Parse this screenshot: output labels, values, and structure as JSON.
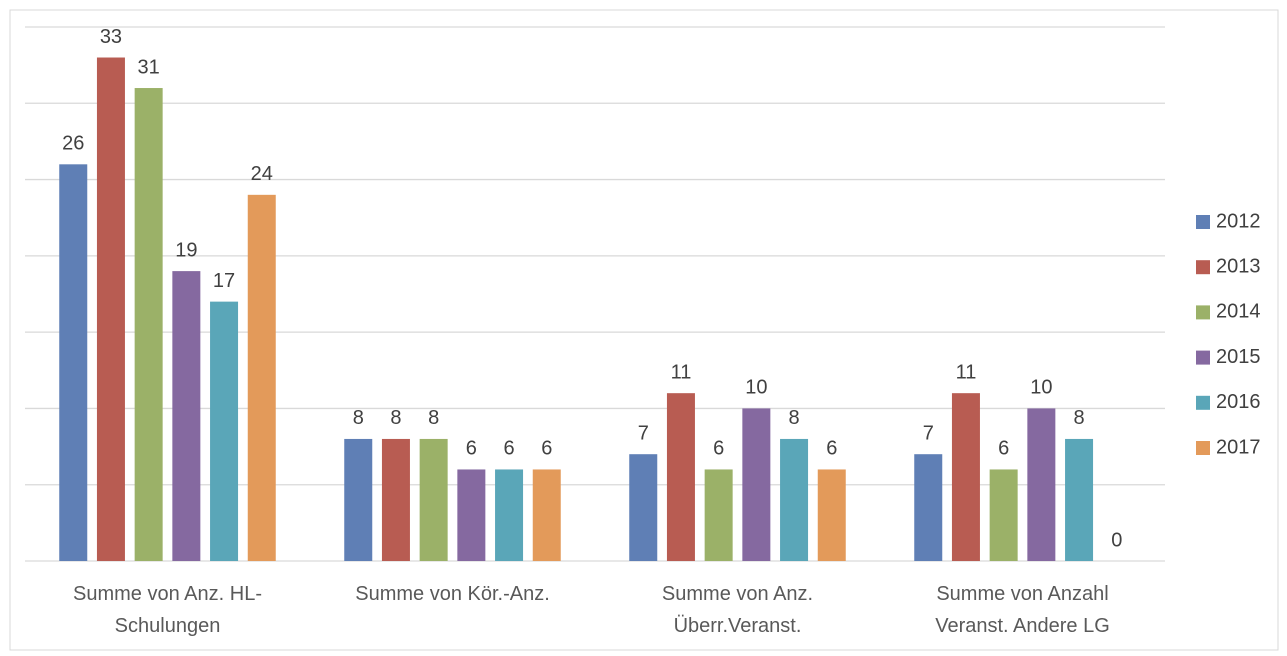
{
  "chart_data": {
    "type": "bar",
    "categories": [
      "Summe von Anz. HL-Schulungen",
      "Summe von Kör.-Anz.",
      "Summe von Anz. Überr.Veranst.",
      "Summe von Anzahl Veranst. Andere LG"
    ],
    "series": [
      {
        "name": "2012",
        "color": "#5f7fb5",
        "values": [
          26,
          8,
          7,
          7
        ]
      },
      {
        "name": "2013",
        "color": "#b85c52",
        "values": [
          33,
          8,
          11,
          11
        ]
      },
      {
        "name": "2014",
        "color": "#9bb168",
        "values": [
          31,
          8,
          6,
          6
        ]
      },
      {
        "name": "2015",
        "color": "#8569a0",
        "values": [
          19,
          6,
          10,
          10
        ]
      },
      {
        "name": "2016",
        "color": "#5aa6b8",
        "values": [
          17,
          6,
          8,
          8
        ]
      },
      {
        "name": "2017",
        "color": "#e39a5a",
        "values": [
          24,
          6,
          6,
          0
        ]
      }
    ],
    "ylim": [
      0,
      35
    ],
    "yticks": [
      0,
      5,
      10,
      15,
      20,
      25,
      30,
      35
    ],
    "grid": true,
    "legend": "right"
  }
}
